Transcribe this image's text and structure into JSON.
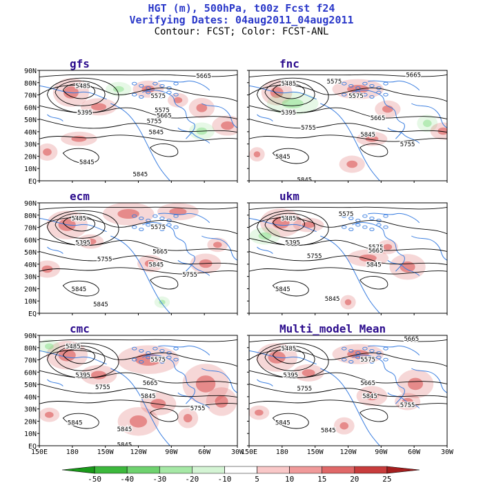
{
  "title": {
    "line1": "HGT (m), 500hPa, t00z Fcst f24",
    "line2": "Verifying Dates: 04aug2011_04aug2011",
    "line3": "Contour: FCST; Color: FCST-ANL"
  },
  "lat_labels": [
    "90N",
    "80N",
    "70N",
    "60N",
    "50N",
    "40N",
    "30N",
    "20N",
    "10N",
    "EQ"
  ],
  "lon_labels": [
    "150E",
    "180",
    "150W",
    "120W",
    "90W",
    "60W",
    "30W"
  ],
  "panels": [
    {
      "name": "gfs",
      "contours": [
        {
          "label": "5665"
        },
        {
          "label": "5485"
        },
        {
          "label": "5575"
        },
        {
          "label": "5395"
        },
        {
          "label": "5575"
        },
        {
          "label": "5665"
        },
        {
          "label": "5755"
        },
        {
          "label": "5845"
        },
        {
          "label": "5845"
        },
        {
          "label": "5845"
        }
      ]
    },
    {
      "name": "fnc",
      "contours": [
        {
          "label": "5665"
        },
        {
          "label": "5485"
        },
        {
          "label": "5575"
        },
        {
          "label": "5575"
        },
        {
          "label": "5395"
        },
        {
          "label": "5665"
        },
        {
          "label": "5755"
        },
        {
          "label": "5845"
        },
        {
          "label": "5755"
        },
        {
          "label": "5845"
        },
        {
          "label": "5845"
        }
      ]
    },
    {
      "name": "ecm",
      "contours": [
        {
          "label": "5485"
        },
        {
          "label": "5575"
        },
        {
          "label": "5395"
        },
        {
          "label": "5665"
        },
        {
          "label": "5755"
        },
        {
          "label": "5845"
        },
        {
          "label": "5755"
        },
        {
          "label": "5845"
        },
        {
          "label": "5845"
        }
      ]
    },
    {
      "name": "ukm",
      "contours": [
        {
          "label": "5575"
        },
        {
          "label": "5485"
        },
        {
          "label": "5395"
        },
        {
          "label": "5575"
        },
        {
          "label": "5665"
        },
        {
          "label": "5755"
        },
        {
          "label": "5845"
        },
        {
          "label": "5845"
        },
        {
          "label": "5845"
        }
      ]
    },
    {
      "name": "cmc",
      "contours": [
        {
          "label": "5485"
        },
        {
          "label": "5575"
        },
        {
          "label": "5395"
        },
        {
          "label": "5755"
        },
        {
          "label": "5665"
        },
        {
          "label": "5845"
        },
        {
          "label": "5755"
        },
        {
          "label": "5845"
        },
        {
          "label": "5845"
        },
        {
          "label": "5845"
        }
      ]
    },
    {
      "name": "Multi_model Mean",
      "contours": [
        {
          "label": "5665"
        },
        {
          "label": "5485"
        },
        {
          "label": "5575"
        },
        {
          "label": "5395"
        },
        {
          "label": "5665"
        },
        {
          "label": "5755"
        },
        {
          "label": "5845"
        },
        {
          "label": "5755"
        },
        {
          "label": "5845"
        },
        {
          "label": "5845"
        }
      ]
    }
  ],
  "colorbar": {
    "labels": [
      "-50",
      "-40",
      "-30",
      "-20",
      "-10",
      "5",
      "10",
      "15",
      "20",
      "25"
    ],
    "colors": [
      "#1a9a1a",
      "#3cb83c",
      "#6fd26f",
      "#a6e8a6",
      "#d4f4d4",
      "#ffffff",
      "#f9c8c8",
      "#f09a9a",
      "#e06868",
      "#c83c3c",
      "#a51e1e"
    ]
  },
  "colors": {
    "title": "#2a38c9",
    "panel_label": "#2a0a8c",
    "coast": "#3a7ee0",
    "anom_pos": "#d84a4a",
    "anom_neg": "#8ee08e",
    "contour": "#000000"
  }
}
